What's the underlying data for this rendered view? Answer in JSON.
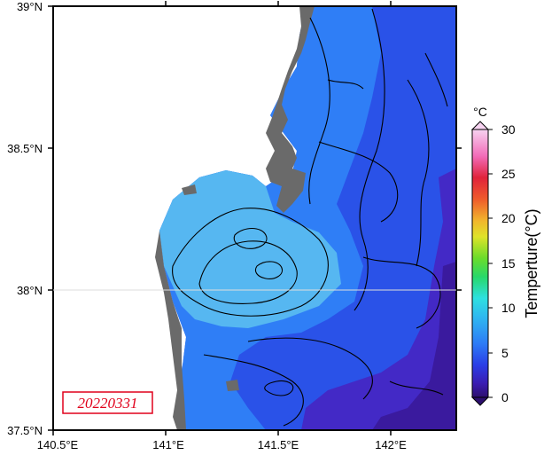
{
  "map": {
    "lat_labels": [
      "39°N",
      "38.5°N",
      "38°N",
      "37.5°N"
    ],
    "lon_labels": [
      "140.5°E",
      "141°E",
      "141.5°E",
      "142°E"
    ],
    "date_label": "20220331",
    "colors": {
      "land": "#6a6a6a",
      "unmapped": "#ffffff",
      "sst_warm": "#56b7f1",
      "sst_mid": "#2f7ef6",
      "sst_cool": "#2a52e8",
      "sst_cold": "#4329c6",
      "contour": "#000000",
      "date_border": "#e0001b"
    }
  },
  "colorbar": {
    "unit": "°C",
    "title": "Temperture(°C)",
    "tick_labels": [
      "30",
      "25",
      "20",
      "15",
      "10",
      "5",
      "0"
    ],
    "range": [
      0,
      30
    ]
  }
}
